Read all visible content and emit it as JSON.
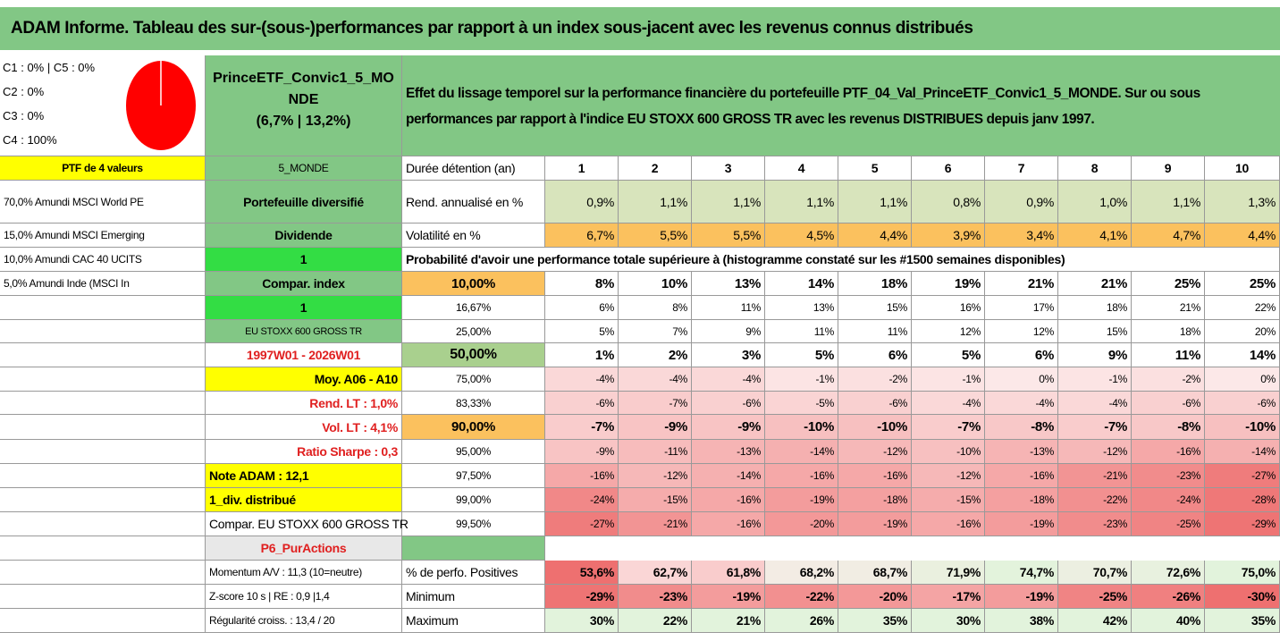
{
  "title": "ADAM Informe. Tableau des sur-(sous-)performances par rapport à un index sous-jacent avec les revenus connus distribués",
  "allocation": [
    "C1 : 0% | C5 : 0%",
    "C2 : 0%",
    "C3 : 0%",
    "C4 : 100%"
  ],
  "portfolio": {
    "name": "PrinceETF_Convic1_5_MONDE",
    "stats": "(6,7% | 13,2%)"
  },
  "description": "Effet du lissage temporel sur la performance financière du portefeuille PTF_04_Val_PrinceETF_Convic1_5_MONDE. Sur ou sous performances par rapport à l'indice EU STOXX 600 GROSS TR avec les revenus DISTRIBUES depuis janv 1997.",
  "column_a": [
    "PTF de 4 valeurs",
    "70,0% Amundi MSCI World PE",
    "15,0% Amundi MSCI Emerging",
    "10,0% Amundi CAC 40 UCITS",
    "5,0% Amundi Inde (MSCI In"
  ],
  "column_b": [
    "5_MONDE",
    "Portefeuille diversifié",
    "Dividende",
    "1",
    "Compar. index",
    "1",
    "EU STOXX 600 GROSS TR",
    "1997W01 - 2026W01",
    "Moy. A06 - A10",
    "Rend. LT : 1,0%",
    "Vol. LT : 4,1%",
    "Ratio Sharpe : 0,3",
    "Note ADAM : 12,1",
    "1_div. distribué",
    "Compar. EU STOXX 600 GROSS TR",
    "P6_PurActions",
    "Momentum A/V : 11,3 (10=neutre)",
    "Z-score 10 s | RE : 0,9 |1,4",
    "Régularité croiss. : 13,4 / 20"
  ],
  "table": {
    "header_label": "Durée détention (an)",
    "periods": [
      1,
      2,
      3,
      4,
      5,
      6,
      7,
      8,
      9,
      10
    ],
    "rows": [
      {
        "label": "Rend. annualisé en %",
        "values": [
          "0,9%",
          "1,1%",
          "1,1%",
          "1,1%",
          "1,1%",
          "0,8%",
          "0,9%",
          "1,0%",
          "1,1%",
          "1,3%"
        ]
      },
      {
        "label": "Volatilité en %",
        "values": [
          "6,7%",
          "5,5%",
          "5,5%",
          "4,5%",
          "4,4%",
          "3,9%",
          "3,4%",
          "4,1%",
          "4,7%",
          "4,4%"
        ]
      }
    ],
    "probability_note": "Probabilité d'avoir une performance totale supérieure à (histogramme constaté sur les #1500 semaines disponibles)",
    "quantiles": [
      {
        "level": "10,00%",
        "values": [
          "8%",
          "10%",
          "13%",
          "14%",
          "18%",
          "19%",
          "21%",
          "21%",
          "25%",
          "25%"
        ]
      },
      {
        "level": "16,67%",
        "values": [
          "6%",
          "8%",
          "11%",
          "13%",
          "15%",
          "16%",
          "17%",
          "18%",
          "21%",
          "22%"
        ]
      },
      {
        "level": "25,00%",
        "values": [
          "5%",
          "7%",
          "9%",
          "11%",
          "11%",
          "12%",
          "12%",
          "15%",
          "18%",
          "20%"
        ]
      },
      {
        "level": "50,00%",
        "values": [
          "1%",
          "2%",
          "3%",
          "5%",
          "6%",
          "5%",
          "6%",
          "9%",
          "11%",
          "14%"
        ]
      },
      {
        "level": "75,00%",
        "values": [
          "-4%",
          "-4%",
          "-4%",
          "-1%",
          "-2%",
          "-1%",
          "0%",
          "-1%",
          "-2%",
          "0%"
        ]
      },
      {
        "level": "83,33%",
        "values": [
          "-6%",
          "-7%",
          "-6%",
          "-5%",
          "-6%",
          "-4%",
          "-4%",
          "-4%",
          "-6%",
          "-6%"
        ]
      },
      {
        "level": "90,00%",
        "values": [
          "-7%",
          "-9%",
          "-9%",
          "-10%",
          "-10%",
          "-7%",
          "-8%",
          "-7%",
          "-8%",
          "-10%"
        ]
      },
      {
        "level": "95,00%",
        "values": [
          "-9%",
          "-11%",
          "-13%",
          "-14%",
          "-12%",
          "-10%",
          "-13%",
          "-12%",
          "-16%",
          "-14%"
        ]
      },
      {
        "level": "97,50%",
        "values": [
          "-16%",
          "-12%",
          "-14%",
          "-16%",
          "-16%",
          "-12%",
          "-16%",
          "-21%",
          "-23%",
          "-27%"
        ]
      },
      {
        "level": "99,00%",
        "values": [
          "-24%",
          "-15%",
          "-16%",
          "-19%",
          "-18%",
          "-15%",
          "-18%",
          "-22%",
          "-24%",
          "-28%"
        ]
      },
      {
        "level": "99,50%",
        "values": [
          "-27%",
          "-21%",
          "-16%",
          "-20%",
          "-19%",
          "-16%",
          "-19%",
          "-23%",
          "-25%",
          "-29%"
        ]
      }
    ],
    "summary": [
      {
        "label": "% de perfo. Positives",
        "values": [
          "53,6%",
          "62,7%",
          "61,8%",
          "68,2%",
          "68,7%",
          "71,9%",
          "74,7%",
          "70,7%",
          "72,6%",
          "75,0%"
        ]
      },
      {
        "label": "Minimum",
        "values": [
          "-29%",
          "-23%",
          "-19%",
          "-22%",
          "-20%",
          "-17%",
          "-19%",
          "-25%",
          "-26%",
          "-30%"
        ]
      },
      {
        "label": "Maximum",
        "values": [
          "30%",
          "22%",
          "21%",
          "26%",
          "35%",
          "30%",
          "38%",
          "42%",
          "40%",
          "35%"
        ]
      }
    ]
  }
}
